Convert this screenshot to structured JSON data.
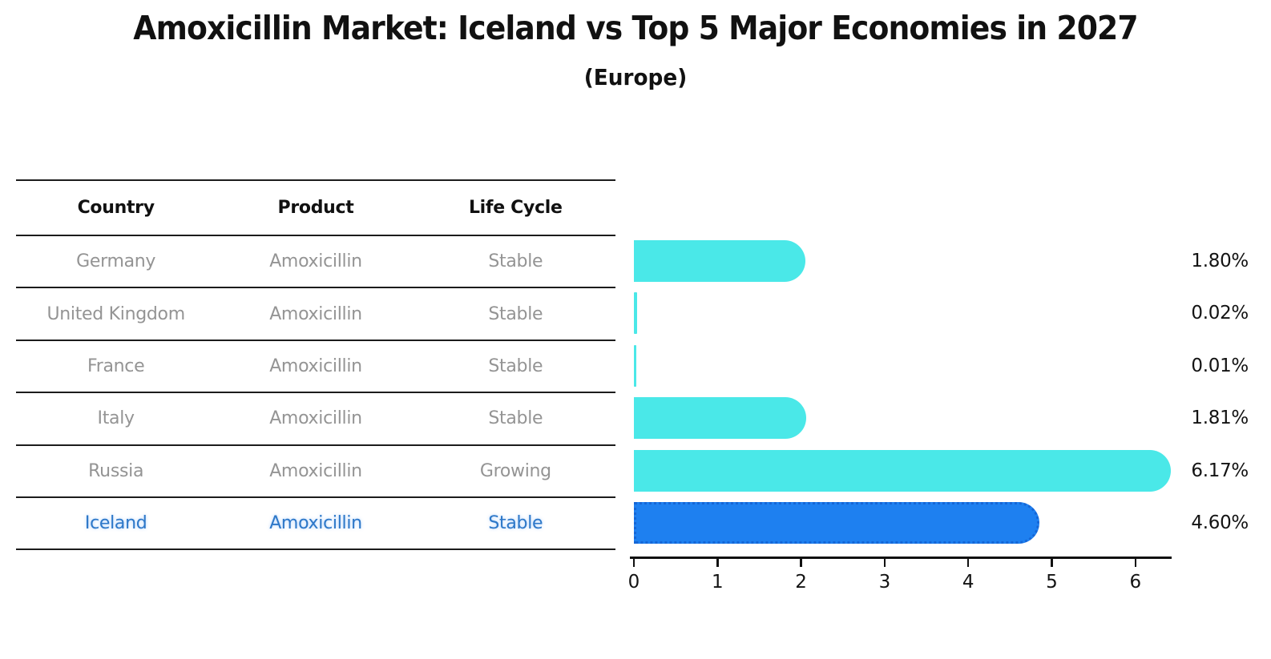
{
  "header": {
    "title": "Amoxicillin Market: Iceland vs Top 5 Major Economies in 2027",
    "subtitle": "(Europe)"
  },
  "table": {
    "columns": [
      "Country",
      "Product",
      "Life Cycle"
    ],
    "rows": [
      {
        "country": "Germany",
        "product": "Amoxicillin",
        "life_cycle": "Stable",
        "highlighted": false
      },
      {
        "country": "United Kingdom",
        "product": "Amoxicillin",
        "life_cycle": "Stable",
        "highlighted": false
      },
      {
        "country": "France",
        "product": "Amoxicillin",
        "life_cycle": "Stable",
        "highlighted": false
      },
      {
        "country": "Italy",
        "product": "Amoxicillin",
        "life_cycle": "Stable",
        "highlighted": false
      },
      {
        "country": "Russia",
        "product": "Amoxicillin",
        "life_cycle": "Growing",
        "highlighted": false
      },
      {
        "country": "Iceland",
        "product": "Amoxicillin",
        "life_cycle": "Stable",
        "highlighted": true
      }
    ]
  },
  "chart_data": {
    "type": "bar",
    "orientation": "horizontal",
    "title": "Amoxicillin Market: Iceland vs Top 5 Major Economies in 2027",
    "subtitle": "(Europe)",
    "categories": [
      "Germany",
      "United Kingdom",
      "France",
      "Italy",
      "Russia",
      "Iceland"
    ],
    "values": [
      1.8,
      0.02,
      0.01,
      1.81,
      6.17,
      4.6
    ],
    "value_labels": [
      "1.80%",
      "0.02%",
      "0.01%",
      "1.81%",
      "6.17%",
      "4.60%"
    ],
    "x_ticks": [
      "0",
      "1",
      "2",
      "3",
      "4",
      "5",
      "6"
    ],
    "xlim": [
      0,
      6.43
    ],
    "grid": false,
    "legend": "none",
    "highlight_index": 5,
    "bar_color": "#4AE8E8",
    "highlight_bar_color": "#1E80F0",
    "highlight_border_color": "#1566D6"
  },
  "colors": {
    "title_text": "#111111",
    "header_text": "#111111",
    "row_text": "#949494",
    "highlight_text": "#2E78C8",
    "axis": "#111111"
  }
}
